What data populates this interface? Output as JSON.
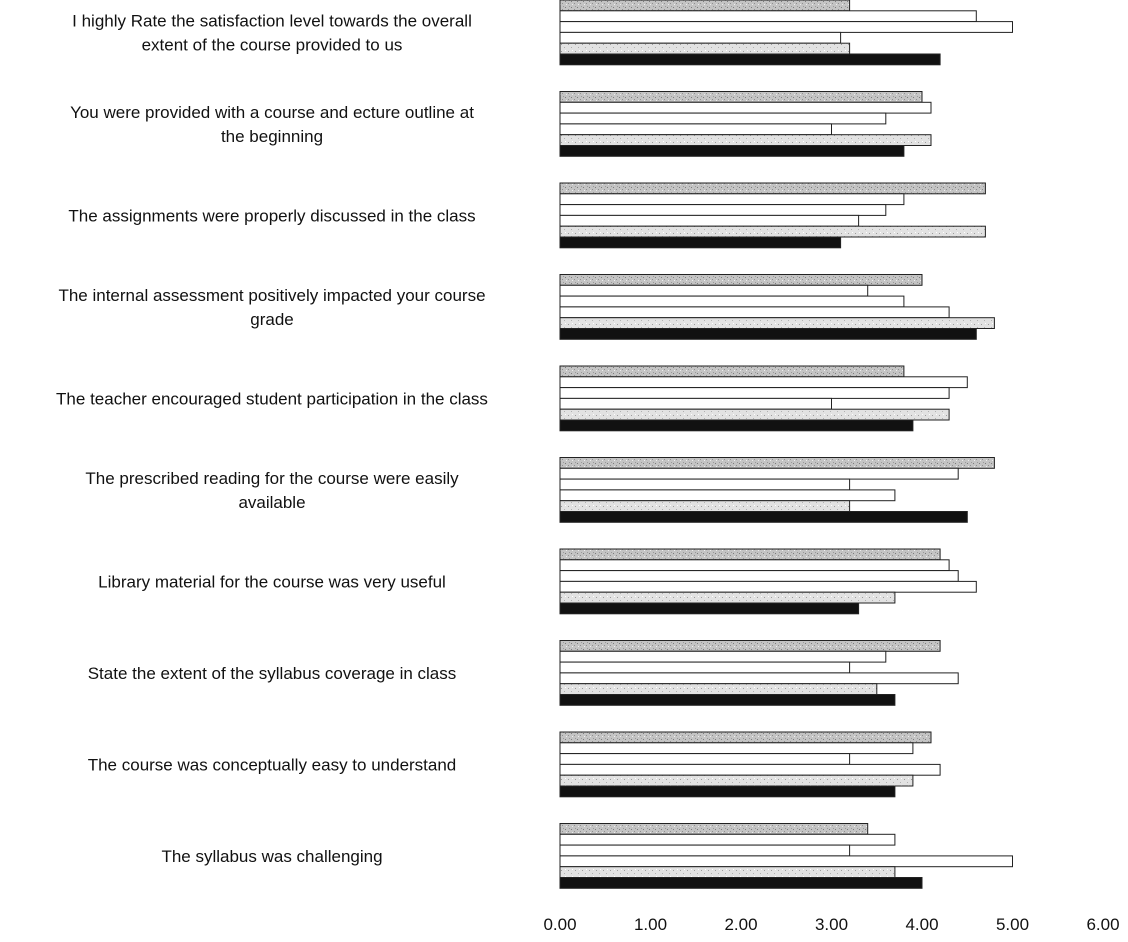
{
  "chart_data": {
    "type": "bar",
    "orientation": "horizontal",
    "title": "",
    "xlabel": "",
    "ylabel": "",
    "xlim": [
      0,
      6
    ],
    "grid": false,
    "legend": "none",
    "categories": [
      "I highly Rate the satisfaction level towards the overall extent of the course provided to us",
      "You were provided with a course and ecture outline at the beginning",
      "The assignments were properly discussed in the class",
      "The internal assessment positively impacted your course grade",
      "The teacher encouraged student participation in the class",
      "The prescribed reading for the course were easily available",
      "Library material for the course was very useful",
      "State the extent of the syllabus coverage in class",
      "The course was conceptually easy to understand",
      "The syllabus was challenging"
    ],
    "category_lines": [
      [
        "I highly Rate the satisfaction level towards the overall",
        "extent of the course provided to us"
      ],
      [
        "You were provided with a course and ecture outline at",
        "the beginning"
      ],
      [
        "The assignments were properly discussed in the class"
      ],
      [
        "The internal assessment positively impacted your course",
        "grade"
      ],
      [
        "The teacher encouraged student participation in the class"
      ],
      [
        "The prescribed reading for the course were easily",
        "available"
      ],
      [
        "Library material for the course was very useful"
      ],
      [
        "State the extent of the syllabus coverage in class"
      ],
      [
        "The course was conceptually easy to understand"
      ],
      [
        "The syllabus was challenging"
      ]
    ],
    "x_ticks": [
      "0.00",
      "1.00",
      "2.00",
      "3.00",
      "4.00",
      "5.00",
      "6.00"
    ],
    "series": [
      {
        "values": [
          3.2,
          4.0,
          4.7,
          4.0,
          3.8,
          4.8,
          4.2,
          4.2,
          4.1,
          3.4
        ]
      },
      {
        "values": [
          4.6,
          4.1,
          3.8,
          3.4,
          4.5,
          4.4,
          4.3,
          3.6,
          3.9,
          3.7
        ]
      },
      {
        "values": [
          5.0,
          3.6,
          3.6,
          3.8,
          4.3,
          3.2,
          4.4,
          3.2,
          3.2,
          3.2
        ]
      },
      {
        "values": [
          3.1,
          3.0,
          3.3,
          4.3,
          3.0,
          3.7,
          4.6,
          4.4,
          4.2,
          5.0
        ]
      },
      {
        "values": [
          3.2,
          4.1,
          4.7,
          4.8,
          4.3,
          3.2,
          3.7,
          3.5,
          3.9,
          3.7
        ]
      },
      {
        "values": [
          4.2,
          3.8,
          3.1,
          4.6,
          3.9,
          4.5,
          3.3,
          3.7,
          3.7,
          4.0
        ]
      }
    ],
    "colors": {
      "fills": [
        "#b9b9b9",
        "#ffffff",
        "#ffffff",
        "#ffffff",
        "#d2d2d2",
        "#111111"
      ],
      "stroke": "#222222"
    }
  }
}
